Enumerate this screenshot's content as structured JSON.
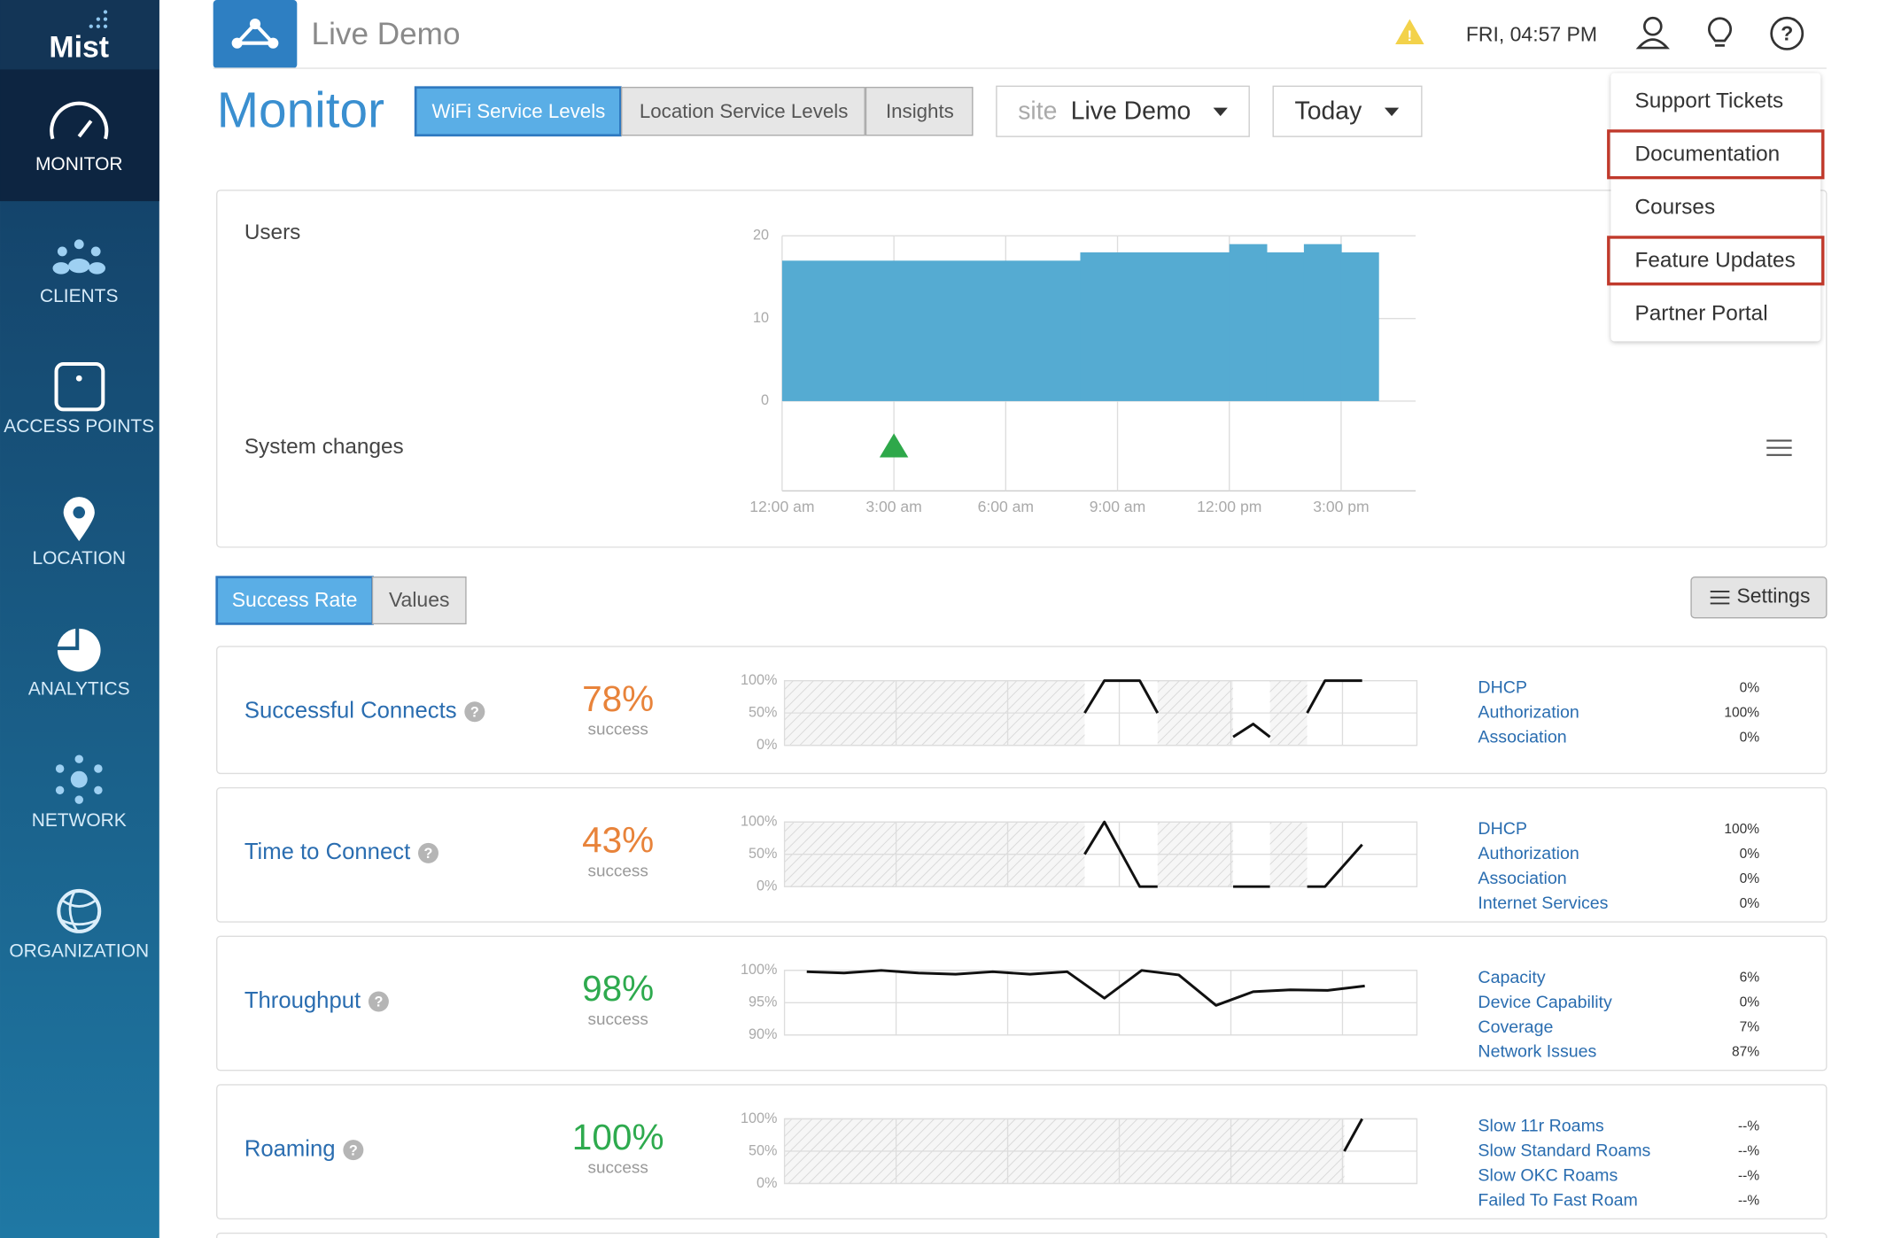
{
  "sidebar": {
    "logo": "Mist",
    "items": [
      "MONITOR",
      "CLIENTS",
      "ACCESS POINTS",
      "LOCATION",
      "ANALYTICS",
      "NETWORK",
      "ORGANIZATION"
    ]
  },
  "header": {
    "site": "Live Demo",
    "datetime": "FRI, 04:57 PM"
  },
  "toolbar": {
    "title": "Monitor",
    "tabs": [
      "WiFi Service Levels",
      "Location Service Levels",
      "Insights"
    ],
    "site_label": "site",
    "site_value": "Live Demo",
    "range": "Today"
  },
  "help_menu": [
    {
      "label": "Support Tickets"
    },
    {
      "label": "Documentation",
      "highlighted": true
    },
    {
      "label": "Courses"
    },
    {
      "label": "Feature Updates",
      "highlighted": true
    },
    {
      "label": "Partner Portal"
    }
  ],
  "sle_toggle": [
    "Success Rate",
    "Values"
  ],
  "settings": "Settings",
  "chart_data": [
    {
      "type": "histogram",
      "title": "Users",
      "bins": [
        0,
        8,
        12,
        13,
        14,
        15,
        16
      ],
      "values": [
        17,
        18,
        19,
        18,
        19,
        18
      ],
      "color": "#55abd2",
      "xlim": [
        0,
        17
      ],
      "xticks": [
        {
          "value": 0,
          "label": "12:00 am"
        },
        {
          "value": 3,
          "label": "3:00 am"
        },
        {
          "value": 6,
          "label": "6:00 am"
        },
        {
          "value": 9,
          "label": "9:00 am"
        },
        {
          "value": 12,
          "label": "12:00 pm"
        },
        {
          "value": 15,
          "label": "3:00 pm"
        }
      ],
      "ylim": [
        0,
        20
      ],
      "yticks": [
        0,
        10,
        20
      ],
      "grid": true,
      "events_label": "System changes",
      "events": [
        3
      ]
    },
    {
      "type": "line",
      "title": "Successful Connects",
      "score": "78%",
      "score_label": "success",
      "score_color": "#e8833a",
      "x": [
        8.07,
        8.6,
        9.55,
        10.03,
        null,
        12.06,
        12.6,
        13.05,
        null,
        14.05,
        14.53,
        15.53
      ],
      "values": [
        50,
        100,
        100,
        50,
        null,
        13,
        33,
        13,
        null,
        50,
        100,
        100
      ],
      "no_data": [
        [
          0,
          8.07
        ],
        [
          10.03,
          12.06
        ],
        [
          13.05,
          14.05
        ]
      ],
      "xlim": [
        0,
        17
      ],
      "xticks": [
        3,
        6,
        9,
        12,
        15
      ],
      "ylim": [
        0,
        100
      ],
      "yticks": [
        {
          "value": 0,
          "label": "0%"
        },
        {
          "value": 50,
          "label": "50%"
        },
        {
          "value": 100,
          "label": "100%"
        }
      ],
      "breakdown": [
        {
          "name": "DHCP",
          "value": "0%"
        },
        {
          "name": "Authorization",
          "value": "100%"
        },
        {
          "name": "Association",
          "value": "0%"
        }
      ]
    },
    {
      "type": "line",
      "title": "Time to Connect",
      "score": "43%",
      "score_label": "success",
      "score_color": "#e8833a",
      "x": [
        8.07,
        8.6,
        9.55,
        10.03,
        null,
        12.06,
        13.05,
        null,
        14.05,
        14.53,
        15.53
      ],
      "values": [
        50,
        100,
        0,
        0,
        null,
        0,
        0,
        null,
        0,
        0,
        65
      ],
      "no_data": [
        [
          0,
          8.07
        ],
        [
          10.03,
          12.06
        ],
        [
          13.05,
          14.05
        ]
      ],
      "xlim": [
        0,
        17
      ],
      "xticks": [
        3,
        6,
        9,
        12,
        15
      ],
      "ylim": [
        0,
        100
      ],
      "yticks": [
        {
          "value": 0,
          "label": "0%"
        },
        {
          "value": 50,
          "label": "50%"
        },
        {
          "value": 100,
          "label": "100%"
        }
      ],
      "breakdown": [
        {
          "name": "DHCP",
          "value": "100%"
        },
        {
          "name": "Authorization",
          "value": "0%"
        },
        {
          "name": "Association",
          "value": "0%"
        },
        {
          "name": "Internet Services",
          "value": "0%"
        }
      ]
    },
    {
      "type": "line",
      "title": "Throughput",
      "score": "98%",
      "score_label": "success",
      "score_color": "#2eaa4e",
      "x": [
        0.6,
        1.6,
        2.6,
        3.6,
        4.6,
        5.6,
        6.6,
        7.6,
        8.6,
        9.6,
        10.6,
        11.6,
        12.6,
        13.6,
        14.6,
        15.6
      ],
      "values": [
        99.8,
        99.6,
        100,
        99.6,
        99.4,
        99.8,
        99.4,
        99.8,
        95.7,
        100,
        99.3,
        94.6,
        96.7,
        97,
        96.9,
        97.6
      ],
      "no_data": [],
      "xlim": [
        0,
        17
      ],
      "xticks": [
        3,
        6,
        9,
        12,
        15
      ],
      "ylim": [
        90,
        100
      ],
      "yticks": [
        {
          "value": 90,
          "label": "90%"
        },
        {
          "value": 95,
          "label": "95%"
        },
        {
          "value": 100,
          "label": "100%"
        }
      ],
      "breakdown": [
        {
          "name": "Capacity",
          "value": "6%"
        },
        {
          "name": "Device Capability",
          "value": "0%"
        },
        {
          "name": "Coverage",
          "value": "7%"
        },
        {
          "name": "Network Issues",
          "value": "87%"
        }
      ]
    },
    {
      "type": "line",
      "title": "Roaming",
      "score": "100%",
      "score_label": "success",
      "score_color": "#2eaa4e",
      "x": [
        15.05,
        15.53
      ],
      "values": [
        50,
        100
      ],
      "no_data": [
        [
          0,
          15.05
        ]
      ],
      "xlim": [
        0,
        17
      ],
      "xticks": [
        3,
        6,
        9,
        12,
        15
      ],
      "ylim": [
        0,
        100
      ],
      "yticks": [
        {
          "value": 0,
          "label": "0%"
        },
        {
          "value": 50,
          "label": "50%"
        },
        {
          "value": 100,
          "label": "100%"
        }
      ],
      "breakdown": [
        {
          "name": "Slow 11r Roams",
          "value": "--%"
        },
        {
          "name": "Slow Standard Roams",
          "value": "--%"
        },
        {
          "name": "Slow OKC Roams",
          "value": "--%"
        },
        {
          "name": "Failed To Fast Roam",
          "value": "--%"
        }
      ]
    }
  ]
}
